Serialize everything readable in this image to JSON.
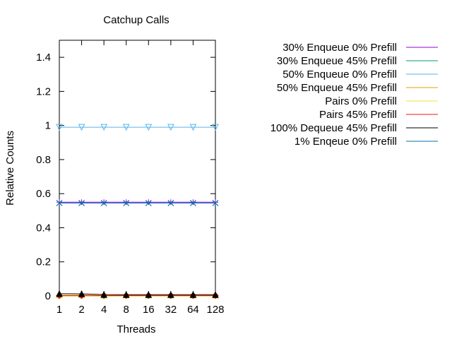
{
  "chart_data": {
    "type": "line",
    "title": "Catchup Calls",
    "xlabel": "Threads",
    "ylabel": "Relative Counts",
    "x": [
      "1",
      "2",
      "4",
      "8",
      "16",
      "32",
      "64",
      "128"
    ],
    "ylim": [
      0,
      1.5
    ],
    "yticks": [
      "0",
      "0.2",
      "0.4",
      "0.6",
      "0.8",
      "1",
      "1.2",
      "1.4"
    ],
    "grid": false,
    "legend_position": "right",
    "series": [
      {
        "name": "30% Enqueue 0% Prefill",
        "color": "#9400d3",
        "marker": "plus",
        "values": [
          0.55,
          0.55,
          0.55,
          0.55,
          0.55,
          0.55,
          0.55,
          0.55
        ]
      },
      {
        "name": "30% Enqueue 45% Prefill",
        "color": "#009e73",
        "marker": "cross",
        "values": [
          0.545,
          0.545,
          0.545,
          0.545,
          0.545,
          0.545,
          0.545,
          0.545
        ]
      },
      {
        "name": "50% Enqueue 0% Prefill",
        "color": "#56b4e9",
        "marker": "triangle-down",
        "values": [
          0.99,
          0.99,
          0.99,
          0.99,
          0.99,
          0.99,
          0.99,
          0.99
        ]
      },
      {
        "name": "50% Enqueue 45% Prefill",
        "color": "#e69f00",
        "marker": "circle",
        "values": [
          0.0,
          0.0,
          0.0,
          0.0,
          0.0,
          0.0,
          0.0,
          0.0
        ]
      },
      {
        "name": "Pairs 0% Prefill",
        "color": "#f0e442",
        "marker": "triangle",
        "values": [
          0.005,
          0.005,
          0.004,
          0.004,
          0.004,
          0.004,
          0.004,
          0.004
        ]
      },
      {
        "name": "Pairs 45% Prefill",
        "color": "#e51e10",
        "marker": "diamond",
        "values": [
          0.002,
          0.002,
          0.002,
          0.002,
          0.002,
          0.002,
          0.002,
          0.002
        ]
      },
      {
        "name": "100% Dequeue 45% Prefill",
        "color": "#000000",
        "marker": "triangle",
        "values": [
          0.013,
          0.012,
          0.008,
          0.007,
          0.007,
          0.007,
          0.007,
          0.007
        ]
      },
      {
        "name": "1% Enqeue 0% Prefill",
        "color": "#0072b2",
        "marker": "cross",
        "values": [
          0.545,
          0.545,
          0.545,
          0.545,
          0.545,
          0.545,
          0.545,
          0.545
        ]
      }
    ]
  }
}
